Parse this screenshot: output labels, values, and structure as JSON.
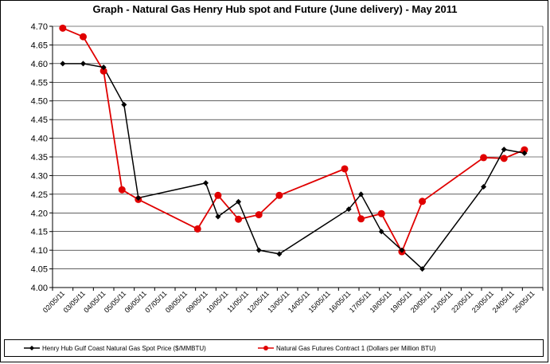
{
  "chart_data": {
    "type": "line",
    "title": "Graph - Natural Gas Henry Hub spot and Future (June delivery) -  May 2011",
    "xlabel": "",
    "ylabel": "",
    "ylim": [
      4.0,
      4.7
    ],
    "y_ticks": [
      "4.00",
      "4.05",
      "4.10",
      "4.15",
      "4.20",
      "4.25",
      "4.30",
      "4.35",
      "4.40",
      "4.45",
      "4.50",
      "4.55",
      "4.60",
      "4.65",
      "4.70"
    ],
    "categories": [
      "02/05/11",
      "03/05/11",
      "04/05/11",
      "05/05/11",
      "06/05/11",
      "07/05/11",
      "08/05/11",
      "09/05/11",
      "10/05/11",
      "11/05/11",
      "12/05/11",
      "13/05/11",
      "14/05/11",
      "15/05/11",
      "16/05/11",
      "17/05/11",
      "18/05/11",
      "19/05/11",
      "20/05/11",
      "21/05/11",
      "22/05/11",
      "23/05/11",
      "24/05/11",
      "25/05/11"
    ],
    "grid": true,
    "legend_position": "bottom",
    "series": [
      {
        "name": "Henry Hub Gulf Coast Natural Gas Spot Price ($/MMBTU)",
        "color": "#000000",
        "marker": "diamond",
        "points": [
          {
            "x": 0.0,
            "y": 4.6
          },
          {
            "x": 1.0,
            "y": 4.6
          },
          {
            "x": 2.0,
            "y": 4.59
          },
          {
            "x": 3.0,
            "y": 4.49
          },
          {
            "x": 3.7,
            "y": 4.24
          },
          {
            "x": 7.0,
            "y": 4.28
          },
          {
            "x": 7.6,
            "y": 4.19
          },
          {
            "x": 8.6,
            "y": 4.23
          },
          {
            "x": 9.6,
            "y": 4.1
          },
          {
            "x": 10.6,
            "y": 4.09
          },
          {
            "x": 14.0,
            "y": 4.21
          },
          {
            "x": 14.6,
            "y": 4.25
          },
          {
            "x": 15.6,
            "y": 4.15
          },
          {
            "x": 16.6,
            "y": 4.1
          },
          {
            "x": 17.6,
            "y": 4.05
          },
          {
            "x": 20.6,
            "y": 4.27
          },
          {
            "x": 21.6,
            "y": 4.37
          },
          {
            "x": 22.6,
            "y": 4.36
          }
        ]
      },
      {
        "name": "Natural Gas Futures Contract 1 (Dollars per Million BTU)",
        "color": "#e00000",
        "marker": "circle",
        "points": [
          {
            "x": 0.0,
            "y": 4.695
          },
          {
            "x": 1.0,
            "y": 4.672
          },
          {
            "x": 2.0,
            "y": 4.58
          },
          {
            "x": 2.9,
            "y": 4.262
          },
          {
            "x": 3.7,
            "y": 4.236
          },
          {
            "x": 6.6,
            "y": 4.157
          },
          {
            "x": 7.6,
            "y": 4.247
          },
          {
            "x": 8.6,
            "y": 4.183
          },
          {
            "x": 9.6,
            "y": 4.195
          },
          {
            "x": 10.6,
            "y": 4.247
          },
          {
            "x": 13.8,
            "y": 4.318
          },
          {
            "x": 14.6,
            "y": 4.184
          },
          {
            "x": 15.6,
            "y": 4.198
          },
          {
            "x": 16.6,
            "y": 4.096
          },
          {
            "x": 17.6,
            "y": 4.231
          },
          {
            "x": 20.6,
            "y": 4.348
          },
          {
            "x": 21.6,
            "y": 4.346
          },
          {
            "x": 22.6,
            "y": 4.369
          }
        ]
      }
    ]
  }
}
